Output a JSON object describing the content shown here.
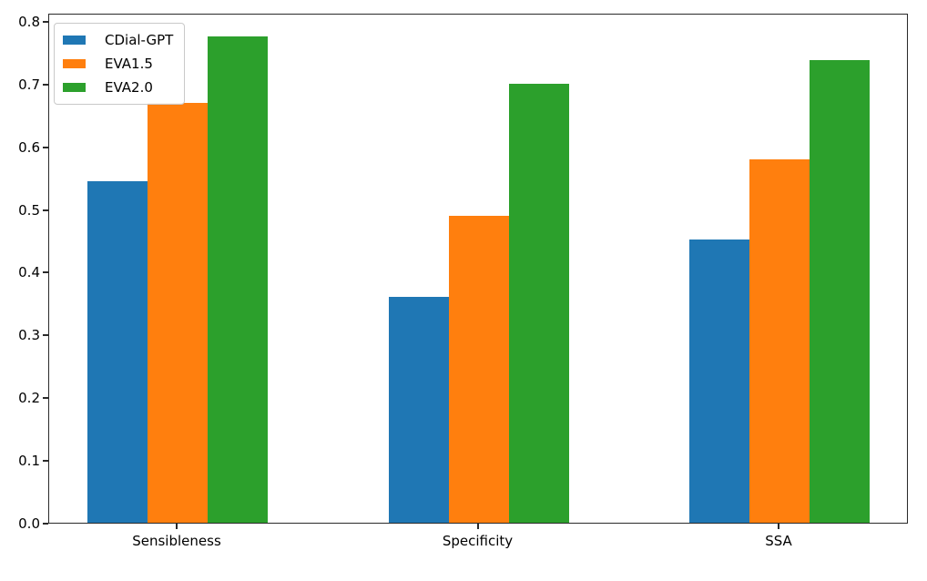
{
  "chart_data": {
    "type": "bar",
    "title": "",
    "xlabel": "",
    "ylabel": "",
    "categories": [
      "Sensibleness",
      "Specificity",
      "SSA"
    ],
    "series": [
      {
        "name": "CDial-GPT",
        "color": "#1f77b4",
        "values": [
          0.545,
          0.36,
          0.452
        ]
      },
      {
        "name": "EVA1.5",
        "color": "#ff7f0e",
        "values": [
          0.67,
          0.49,
          0.58
        ]
      },
      {
        "name": "EVA2.0",
        "color": "#2ca02c",
        "values": [
          0.775,
          0.7,
          0.738
        ]
      }
    ],
    "ylim": [
      0.0,
      0.813
    ],
    "yticks": [
      0.0,
      0.1,
      0.2,
      0.3,
      0.4,
      0.5,
      0.6,
      0.7,
      0.8
    ],
    "ytick_labels": [
      "0.0",
      "0.1",
      "0.2",
      "0.3",
      "0.4",
      "0.5",
      "0.6",
      "0.7",
      "0.8"
    ],
    "grid": false,
    "legend_position": "upper-left"
  },
  "colors": {
    "background": "#ffffff",
    "spine": "#2a2a2a",
    "tick_label": "#000000",
    "legend_border": "#c9c9c9",
    "series_blue": "#1f77b4",
    "series_orange": "#ff7f0e",
    "series_green": "#2ca02c"
  }
}
